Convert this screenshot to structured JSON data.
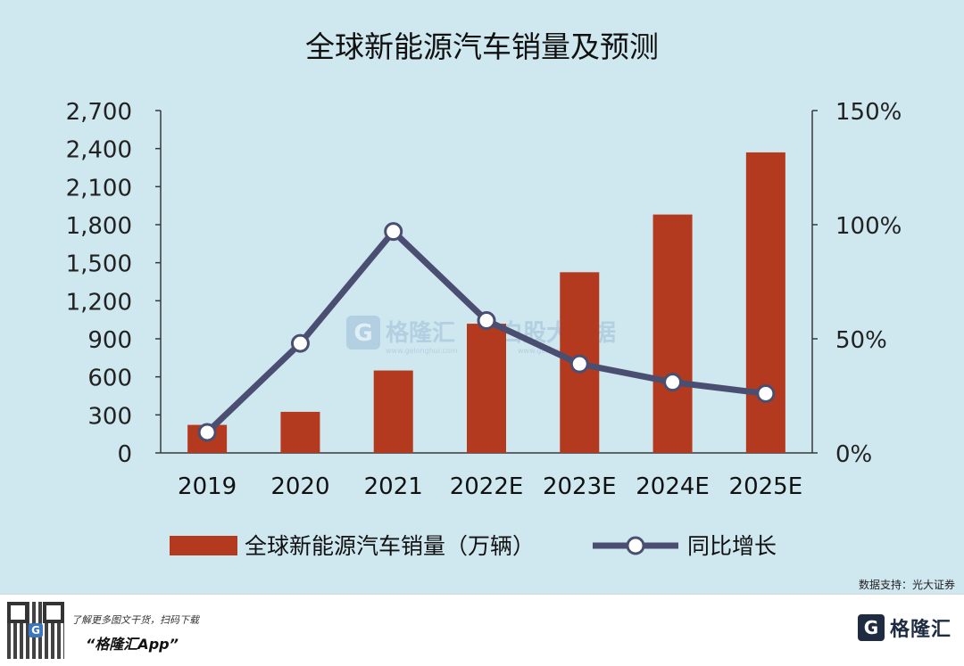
{
  "chart_data": {
    "type": "bar",
    "title": "全球新能源汽车销量及预测",
    "categories": [
      "2019",
      "2020",
      "2021",
      "2022E",
      "2023E",
      "2024E",
      "2025E"
    ],
    "series": [
      {
        "name": "全球新能源汽车销量（万辆）",
        "type": "bar",
        "axis": "left",
        "color": "#b33a1e",
        "values": [
          221,
          324,
          650,
          1019,
          1425,
          1880,
          2370
        ]
      },
      {
        "name": "同比增长",
        "type": "line",
        "axis": "right",
        "color": "#4a4f72",
        "values": [
          9,
          48,
          97,
          58,
          39,
          31,
          26
        ]
      }
    ],
    "y_left": {
      "ylim": [
        0,
        2700
      ],
      "ticks": [
        "0",
        "300",
        "600",
        "900",
        "1,200",
        "1,500",
        "1,800",
        "2,100",
        "2,400",
        "2,700"
      ]
    },
    "y_right": {
      "ylim": [
        0,
        150
      ],
      "ticks": [
        "0%",
        "50%",
        "100%",
        "150%"
      ]
    },
    "grid": false,
    "legend": "bottom"
  },
  "source_note": "数据支持：光大证券",
  "watermark": {
    "brand": "格隆汇",
    "brand_url": "www.gelonghui.com",
    "secondary": "白股大数据",
    "secondary_url": "www.gelonghui.com"
  },
  "footer": {
    "qr_badge": "G",
    "promo": "了解更多图文干货，扫码下载",
    "app": "“格隆汇App”",
    "logo_icon": "G",
    "logo_text": "格隆汇"
  },
  "colors": {
    "background": "#cfe7ef",
    "bar": "#b33a1e",
    "line": "#4a4f72",
    "axis": "#3a3a3a"
  }
}
